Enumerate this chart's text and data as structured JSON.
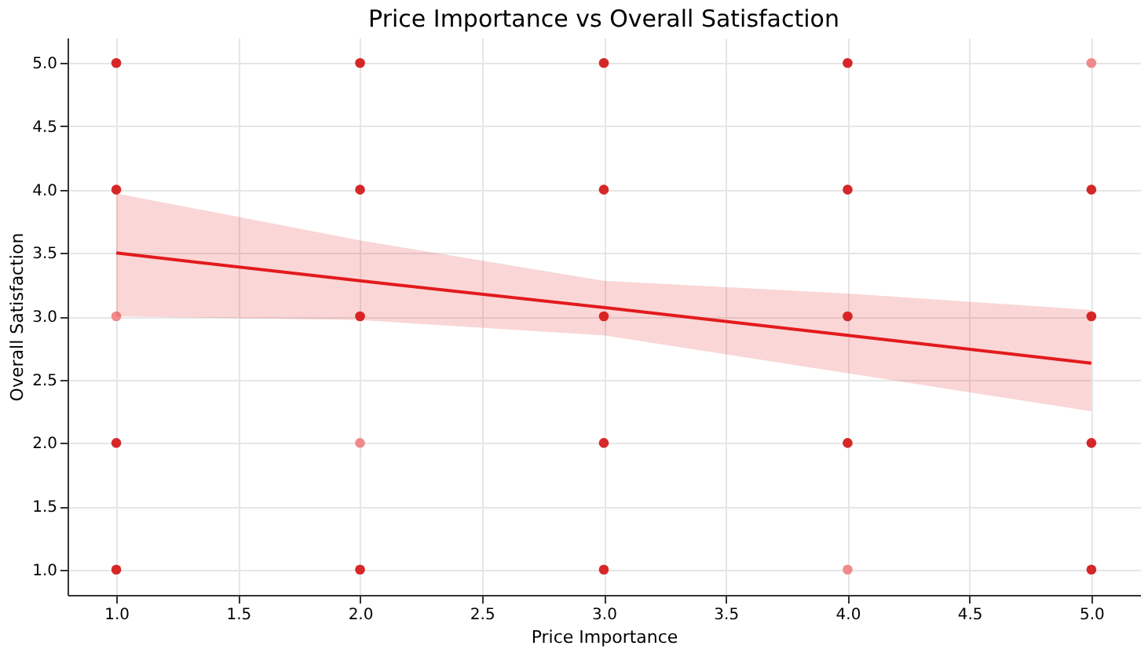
{
  "chart_data": {
    "type": "scatter",
    "title": "Price Importance vs Overall Satisfaction",
    "xlabel": "Price Importance",
    "ylabel": "Overall Satisfaction",
    "xlim": [
      0.8,
      5.2
    ],
    "ylim": [
      0.8,
      5.2
    ],
    "xticks": [
      {
        "value": 1,
        "label": "1.0"
      },
      {
        "value": 1.5,
        "label": "1.5"
      },
      {
        "value": 2,
        "label": "2.0"
      },
      {
        "value": 2.5,
        "label": "2.5"
      },
      {
        "value": 3,
        "label": "3.0"
      },
      {
        "value": 3.5,
        "label": "3.5"
      },
      {
        "value": 4,
        "label": "4.0"
      },
      {
        "value": 4.5,
        "label": "4.5"
      },
      {
        "value": 5,
        "label": "5.0"
      }
    ],
    "yticks": [
      {
        "value": 1,
        "label": "1.0"
      },
      {
        "value": 1.5,
        "label": "1.5"
      },
      {
        "value": 2,
        "label": "2.0"
      },
      {
        "value": 2.5,
        "label": "2.5"
      },
      {
        "value": 3,
        "label": "3.0"
      },
      {
        "value": 3.5,
        "label": "3.5"
      },
      {
        "value": 4,
        "label": "4.0"
      },
      {
        "value": 4.5,
        "label": "4.5"
      },
      {
        "value": 5,
        "label": "5.0"
      }
    ],
    "grid": true,
    "series": [
      {
        "marker": "circle",
        "x": [
          1,
          1,
          1,
          1,
          1,
          2,
          2,
          2,
          2,
          2,
          3,
          3,
          3,
          3,
          3,
          4,
          4,
          4,
          4,
          4,
          5,
          5,
          5,
          5,
          5
        ],
        "values": [
          5,
          4,
          3,
          2,
          1,
          5,
          4,
          3,
          2,
          1,
          5,
          4,
          3,
          2,
          1,
          5,
          4,
          3,
          2,
          1,
          5,
          4,
          3,
          2,
          1
        ],
        "colors": [
          "#d62728",
          "#d62728",
          "#f08a8a",
          "#d62728",
          "#d62728",
          "#d62728",
          "#d62728",
          "#d62728",
          "#f08a8a",
          "#d62728",
          "#d62728",
          "#d62728",
          "#d62728",
          "#d62728",
          "#d62728",
          "#d62728",
          "#d62728",
          "#d62728",
          "#d62728",
          "#f08a8a",
          "#f08a8a",
          "#d62728",
          "#d62728",
          "#d62728",
          "#d62728"
        ]
      },
      {
        "type": "line",
        "color": "#e31a1c",
        "x": [
          1,
          2,
          3,
          4,
          5
        ],
        "values": [
          3.5,
          3.28,
          3.07,
          2.85,
          2.63
        ],
        "lower": [
          3.0,
          2.97,
          2.85,
          2.55,
          2.25
        ],
        "upper": [
          3.97,
          3.6,
          3.28,
          3.18,
          3.05
        ]
      }
    ]
  }
}
